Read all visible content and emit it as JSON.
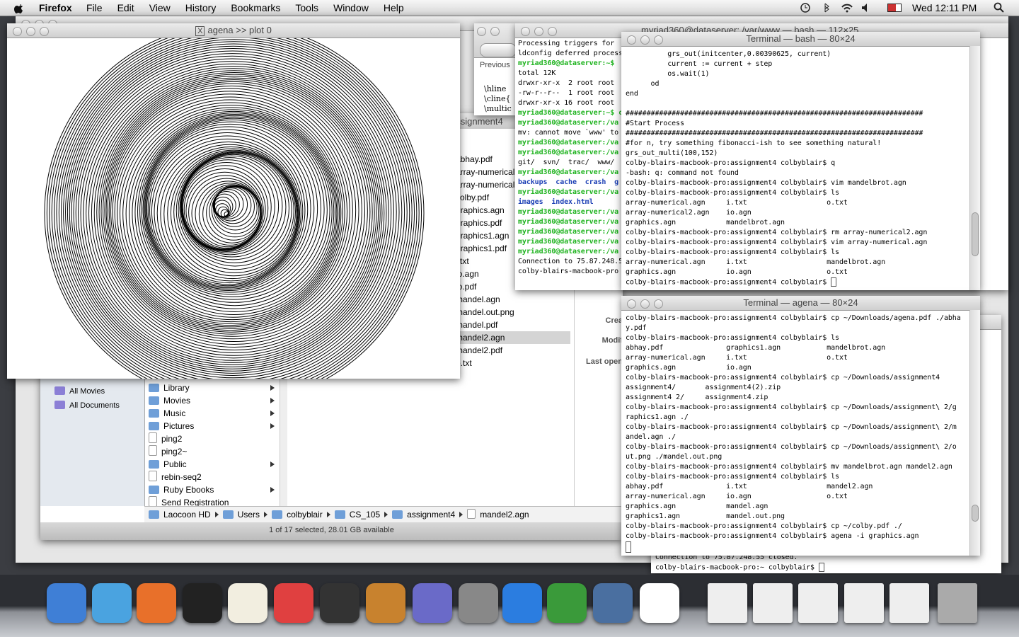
{
  "menubar": {
    "app": "Firefox",
    "menus": [
      "File",
      "Edit",
      "View",
      "History",
      "Bookmarks",
      "Tools",
      "Window",
      "Help"
    ],
    "clock": "Wed 12:11 PM"
  },
  "plot_window": {
    "title": "agena >> plot 0"
  },
  "preview": {
    "button": "Previous",
    "lines": [
      "\\hline",
      "\\cline{",
      "\\multic"
    ]
  },
  "terminal_remote": {
    "title": "myriad360@dataserver: /var/www — bash — 112×25",
    "lines": [
      "Processing triggers for",
      "ldconfig deferred process",
      "myriad360@dataserver:~$",
      "total 12K",
      "drwxr-xr-x  2 root root",
      "-rw-r--r--  1 root root",
      "drwxr-xr-x 16 root root",
      "myriad360@dataserver:~$ c",
      "myriad360@dataserver:/va",
      "mv: cannot move `www' to",
      "myriad360@dataserver:/va",
      "myriad360@dataserver:/va",
      "git/  svn/  trac/  www/",
      "myriad360@dataserver:/va",
      "backups  cache  crash  g",
      "myriad360@dataserver:/va",
      "images  index.html",
      "myriad360@dataserver:/va",
      "myriad360@dataserver:/va",
      "myriad360@dataserver:/va",
      "myriad360@dataserver:/va",
      "myriad360@dataserver:/va",
      "Connection to 75.87.248.5",
      "colby-blairs-macbook-pro"
    ]
  },
  "terminal_bash": {
    "title": "Terminal — bash — 80×24",
    "blocks": [
      [
        "          grs_out(initcenter,0.00390625, current)",
        "          current := current + step",
        "          os.wait(1)",
        "      od",
        "end"
      ],
      [
        "#######################################################################",
        "#Start Process",
        "#######################################################################",
        "#for n, try something fibonacci-ish to see something natural!",
        "grs_out_multi(100,152)",
        "colby-blairs-macbook-pro:assignment4 colbyblair$ q",
        "-bash: q: command not found",
        "colby-blairs-macbook-pro:assignment4 colbyblair$ vim mandelbrot.agn",
        "colby-blairs-macbook-pro:assignment4 colbyblair$ ls",
        "array-numerical.agn     i.txt                   o.txt",
        "array-numerical2.agn    io.agn",
        "graphics.agn            mandelbrot.agn",
        "colby-blairs-macbook-pro:assignment4 colbyblair$ rm array-numerical2.agn",
        "colby-blairs-macbook-pro:assignment4 colbyblair$ vim array-numerical.agn",
        "colby-blairs-macbook-pro:assignment4 colbyblair$ ls",
        "array-numerical.agn     i.txt                   mandelbrot.agn",
        "graphics.agn            io.agn                  o.txt",
        "colby-blairs-macbook-pro:assignment4 colbyblair$"
      ]
    ]
  },
  "terminal_agena": {
    "title": "Terminal — agena — 80×24",
    "lines": [
      "colby-blairs-macbook-pro:assignment4 colbyblair$ cp ~/Downloads/agena.pdf ./abha",
      "y.pdf",
      "colby-blairs-macbook-pro:assignment4 colbyblair$ ls",
      "abhay.pdf               graphics1.agn           mandelbrot.agn",
      "array-numerical.agn     i.txt                   o.txt",
      "graphics.agn            io.agn",
      "colby-blairs-macbook-pro:assignment4 colbyblair$ cp ~/Downloads/assignment4",
      "assignment4/       assignment4(2).zip",
      "assignment4 2/     assignment4.zip",
      "colby-blairs-macbook-pro:assignment4 colbyblair$ cp ~/Downloads/assignment\\ 2/g",
      "raphics1.agn ./",
      "colby-blairs-macbook-pro:assignment4 colbyblair$ cp ~/Downloads/assignment\\ 2/m",
      "andel.agn ./",
      "colby-blairs-macbook-pro:assignment4 colbyblair$ cp ~/Downloads/assignment\\ 2/o",
      "ut.png ./mandel.out.png",
      "colby-blairs-macbook-pro:assignment4 colbyblair$ mv mandelbrot.agn mandel2.agn",
      "colby-blairs-macbook-pro:assignment4 colbyblair$ ls",
      "abhay.pdf               i.txt                   mandel2.agn",
      "array-numerical.agn     io.agn                  o.txt",
      "graphics.agn            mandel.agn",
      "graphics1.agn           mandel.out.png",
      "colby-blairs-macbook-pro:assignment4 colbyblair$ cp ~/colby.pdf ./",
      "colby-blairs-macbook-pro:assignment4 colbyblair$ agena -i graphics.agn"
    ]
  },
  "terminal_back": {
    "lines": [
      "Connection to 75.87.248.55 closed.",
      "colby-blairs-macbook-pro:~ colbyblair$"
    ]
  },
  "finder": {
    "title": "assignment4",
    "sidebar": [
      "All Movies",
      "All Documents"
    ],
    "column1": [
      {
        "name": "Library",
        "folder": true
      },
      {
        "name": "Movies",
        "folder": true
      },
      {
        "name": "Music",
        "folder": true
      },
      {
        "name": "Pictures",
        "folder": true
      },
      {
        "name": "ping2",
        "folder": false
      },
      {
        "name": "ping2~",
        "folder": false
      },
      {
        "name": "Public",
        "folder": true
      },
      {
        "name": "rebin-seq2",
        "folder": false
      },
      {
        "name": "Ruby Ebooks",
        "folder": true
      },
      {
        "name": "Send Registration",
        "folder": false
      }
    ],
    "column2": [
      "abhay.pdf",
      "array-numerical.agn",
      "array-numerical.pdf",
      "colby.pdf",
      "graphics.agn",
      "graphics.pdf",
      "graphics1.agn",
      "graphics1.pdf",
      "i.txt",
      "io.agn",
      "io.pdf",
      "mandel.agn",
      "mandel.out.png",
      "mandel.pdf",
      "mandel2.agn",
      "mandel2.pdf",
      "o.txt"
    ],
    "selected_index": 14,
    "info_labels": [
      "Crea",
      "Modif",
      "Last open"
    ],
    "path": [
      "Laocoon HD",
      "Users",
      "colbyblair",
      "CS_105",
      "assignment4",
      "mandel2.agn"
    ],
    "status": "1 of 17 selected, 28.01 GB available"
  }
}
